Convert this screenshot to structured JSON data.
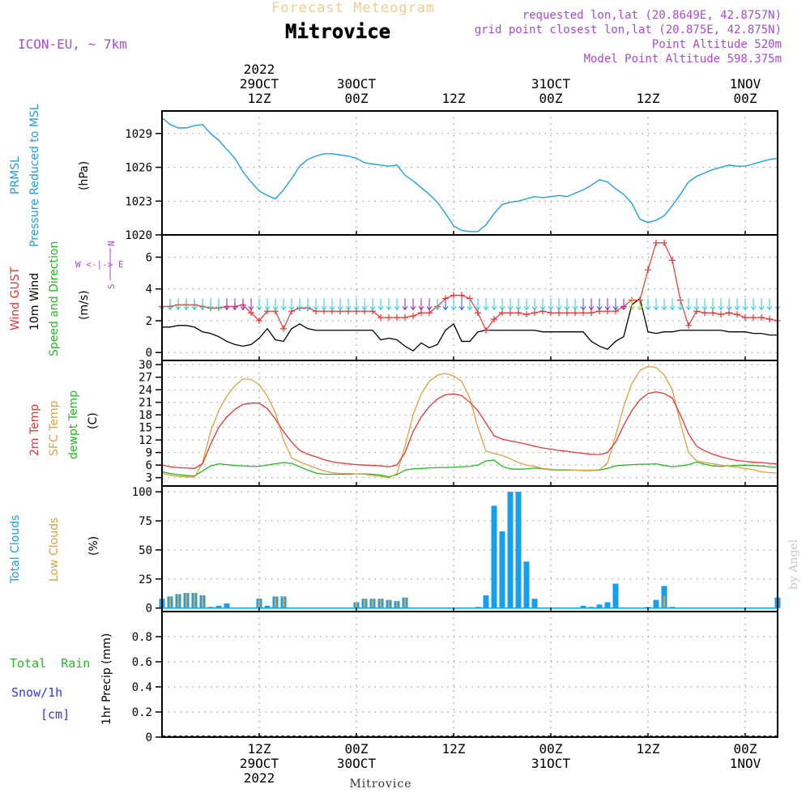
{
  "header": {
    "forecast_label": "Forecast Meteogram",
    "station": "Mitrovice",
    "model": "ICON-EU, ~ 7km",
    "requested": "requested lon,lat (20.8649E, 42.8757N)",
    "grid_point": "grid point closest lon,lat (20.875E, 42.875N)",
    "point_altitude": "Point Altitude 520m",
    "model_altitude": "Model Point Altitude 598.375m",
    "footer_station": "Mitrovice",
    "credit": "by Angel"
  },
  "colors": {
    "pressure": "#1ea0e6",
    "gust": "#ee3333",
    "wind10m": "#000000",
    "temp2m": "#ee3333",
    "sfc_temp": "#e0a040",
    "dewpt": "#22bb22",
    "total_clouds": "#14a0ee",
    "low_clouds": "#e0a040",
    "precip_label": "#22bb22",
    "snow_label": "#3333ee",
    "header_purple": "#a84ad8",
    "forecast_label": "#f0cc90"
  },
  "time_axis": {
    "top_labels": [
      {
        "t": 12,
        "lines": [
          "2022",
          "29OCT",
          "12Z"
        ]
      },
      {
        "t": 24,
        "lines": [
          "30OCT",
          "00Z"
        ]
      },
      {
        "t": 36,
        "lines": [
          "12Z"
        ]
      },
      {
        "t": 48,
        "lines": [
          "31OCT",
          "00Z"
        ]
      },
      {
        "t": 60,
        "lines": [
          "12Z"
        ]
      },
      {
        "t": 72,
        "lines": [
          "1NOV",
          "00Z"
        ]
      }
    ],
    "bottom_labels": [
      {
        "t": 12,
        "lines": [
          "12Z",
          "29OCT",
          "2022"
        ]
      },
      {
        "t": 24,
        "lines": [
          "00Z",
          "30OCT"
        ]
      },
      {
        "t": 36,
        "lines": [
          "12Z"
        ]
      },
      {
        "t": 48,
        "lines": [
          "00Z",
          "31OCT"
        ]
      },
      {
        "t": 60,
        "lines": [
          "12Z"
        ]
      },
      {
        "t": 72,
        "lines": [
          "00Z",
          "1NOV"
        ]
      }
    ]
  },
  "panels": {
    "pressure": {
      "labels": [
        "PRMSL",
        "Pressure Reduced to MSL"
      ],
      "unit": "(hPa)",
      "ticks": [
        "1020",
        "1023",
        "1026",
        "1029"
      ]
    },
    "wind": {
      "labels": [
        "Wind GUST",
        "10m Wind",
        "Speed and Direction"
      ],
      "unit": "(m/s)",
      "ticks": [
        "0",
        "2",
        "4",
        "6"
      ],
      "compass": [
        "N",
        "W <-|-> E",
        "S"
      ]
    },
    "temp": {
      "labels": [
        "2m Temp",
        "SFC Temp",
        "dewpt Temp"
      ],
      "unit": "(C)",
      "ticks": [
        "3",
        "6",
        "9",
        "12",
        "15",
        "18",
        "21",
        "24",
        "27",
        "30"
      ]
    },
    "clouds": {
      "labels": [
        "Total Clouds",
        "Low Clouds"
      ],
      "unit": "(%)",
      "ticks": [
        "0",
        "25",
        "50",
        "75",
        "100"
      ]
    },
    "precip": {
      "labels": [
        "Total  Rain",
        "Snow/1h",
        "[cm]"
      ],
      "axis_label": "1hr Precip (mm)",
      "ticks": [
        "0",
        "0.2",
        "0.4",
        "0.6",
        "0.8"
      ]
    }
  },
  "chart_data": [
    {
      "type": "line",
      "title": "PRMSL Pressure Reduced to MSL",
      "ylabel": "(hPa)",
      "ylim": [
        1020,
        1031
      ],
      "x": [
        0,
        1,
        2,
        3,
        4,
        5,
        6,
        7,
        8,
        9,
        10,
        11,
        12,
        13,
        14,
        15,
        16,
        17,
        18,
        19,
        20,
        21,
        22,
        23,
        24,
        25,
        26,
        27,
        28,
        29,
        30,
        31,
        32,
        33,
        34,
        35,
        36,
        37,
        38,
        39,
        40,
        41,
        42,
        43,
        44,
        45,
        46,
        47,
        48,
        49,
        50,
        51,
        52,
        53,
        54,
        55,
        56,
        57,
        58,
        59,
        60,
        61,
        62,
        63,
        64,
        65,
        66,
        67,
        68,
        69,
        70,
        71,
        72,
        73,
        74,
        75,
        76
      ],
      "series": [
        {
          "name": "PRMSL",
          "values": [
            1030.4,
            1029.8,
            1029.5,
            1029.5,
            1029.7,
            1029.8,
            1029.0,
            1028.4,
            1027.6,
            1026.8,
            1025.6,
            1024.7,
            1023.9,
            1023.5,
            1023.2,
            1024.0,
            1025.0,
            1026.1,
            1026.7,
            1027.0,
            1027.2,
            1027.2,
            1027.1,
            1027.0,
            1026.8,
            1026.4,
            1026.3,
            1026.2,
            1026.1,
            1026.2,
            1025.3,
            1024.8,
            1024.2,
            1023.6,
            1022.9,
            1021.9,
            1020.8,
            1020.4,
            1020.3,
            1020.3,
            1020.9,
            1021.9,
            1022.7,
            1022.9,
            1023.0,
            1023.2,
            1023.4,
            1023.3,
            1023.4,
            1023.5,
            1023.4,
            1023.7,
            1024.0,
            1024.4,
            1024.9,
            1024.7,
            1024.1,
            1023.6,
            1022.8,
            1021.4,
            1021.1,
            1021.3,
            1021.7,
            1022.6,
            1023.6,
            1024.7,
            1025.2,
            1025.5,
            1025.8,
            1026.0,
            1026.2,
            1026.1,
            1026.1,
            1026.3,
            1026.5,
            1026.7,
            1026.8
          ]
        }
      ]
    },
    {
      "type": "line",
      "title": "Wind GUST / 10m Wind Speed and Direction",
      "ylabel": "(m/s)",
      "ylim": [
        -0.5,
        7.4
      ],
      "x": [
        0,
        1,
        2,
        3,
        4,
        5,
        6,
        7,
        8,
        9,
        10,
        11,
        12,
        13,
        14,
        15,
        16,
        17,
        18,
        19,
        20,
        21,
        22,
        23,
        24,
        25,
        26,
        27,
        28,
        29,
        30,
        31,
        32,
        33,
        34,
        35,
        36,
        37,
        38,
        39,
        40,
        41,
        42,
        43,
        44,
        45,
        46,
        47,
        48,
        49,
        50,
        51,
        52,
        53,
        54,
        55,
        56,
        57,
        58,
        59,
        60,
        61,
        62,
        63,
        64,
        65,
        66,
        67,
        68,
        69,
        70,
        71,
        72,
        73,
        74,
        75,
        76
      ],
      "series": [
        {
          "name": "Wind GUST",
          "values": [
            2.9,
            2.9,
            3.0,
            3.0,
            3.0,
            2.9,
            2.8,
            2.8,
            2.9,
            2.9,
            3.0,
            2.5,
            2.0,
            2.6,
            2.6,
            1.5,
            2.6,
            2.8,
            2.8,
            2.6,
            2.6,
            2.6,
            2.6,
            2.6,
            2.6,
            2.6,
            2.6,
            2.2,
            2.2,
            2.2,
            2.2,
            2.3,
            2.5,
            2.5,
            2.9,
            3.4,
            3.6,
            3.6,
            3.4,
            2.5,
            1.4,
            2.1,
            2.5,
            2.5,
            2.5,
            2.4,
            2.5,
            2.6,
            2.5,
            2.5,
            2.5,
            2.5,
            2.5,
            2.5,
            2.6,
            2.6,
            2.6,
            2.9,
            3.3,
            3.3,
            5.2,
            6.9,
            6.9,
            5.8,
            3.3,
            1.7,
            2.6,
            2.5,
            2.5,
            2.4,
            2.5,
            2.4,
            2.2,
            2.2,
            2.2,
            2.1,
            2.0
          ]
        },
        {
          "name": "10m Wind",
          "values": [
            1.6,
            1.6,
            1.7,
            1.7,
            1.6,
            1.3,
            1.2,
            1.0,
            0.7,
            0.5,
            0.4,
            0.5,
            0.9,
            1.5,
            0.8,
            0.7,
            1.5,
            1.8,
            1.5,
            1.4,
            1.4,
            1.4,
            1.4,
            1.4,
            1.4,
            1.4,
            1.4,
            0.8,
            0.9,
            0.8,
            0.4,
            0.1,
            0.6,
            0.3,
            0.5,
            1.4,
            1.8,
            0.7,
            0.7,
            1.3,
            1.4,
            1.4,
            1.4,
            1.4,
            1.4,
            1.4,
            1.4,
            1.3,
            1.3,
            1.3,
            1.3,
            1.3,
            1.3,
            0.7,
            0.4,
            0.2,
            0.7,
            1.0,
            3.0,
            3.4,
            1.3,
            1.2,
            1.3,
            1.3,
            1.4,
            1.4,
            1.4,
            1.4,
            1.4,
            1.4,
            1.3,
            1.3,
            1.3,
            1.2,
            1.2,
            1.1,
            1.1
          ]
        }
      ]
    },
    {
      "type": "line",
      "title": "2m Temp / SFC Temp / dewpt Temp",
      "ylabel": "(C)",
      "ylim": [
        1,
        31
      ],
      "x": [
        0,
        1,
        2,
        3,
        4,
        5,
        6,
        7,
        8,
        9,
        10,
        11,
        12,
        13,
        14,
        15,
        16,
        17,
        18,
        19,
        20,
        21,
        22,
        23,
        24,
        25,
        26,
        27,
        28,
        29,
        30,
        31,
        32,
        33,
        34,
        35,
        36,
        37,
        38,
        39,
        40,
        41,
        42,
        43,
        44,
        45,
        46,
        47,
        48,
        49,
        50,
        51,
        52,
        53,
        54,
        55,
        56,
        57,
        58,
        59,
        60,
        61,
        62,
        63,
        64,
        65,
        66,
        67,
        68,
        69,
        70,
        71,
        72,
        73,
        74,
        75,
        76
      ],
      "series": [
        {
          "name": "2m Temp",
          "values": [
            6.0,
            5.6,
            5.4,
            5.3,
            5.2,
            6.3,
            11.0,
            15.0,
            17.5,
            19.3,
            20.5,
            20.8,
            20.8,
            19.5,
            17.0,
            14.0,
            11.5,
            9.5,
            8.6,
            8.0,
            7.3,
            6.8,
            6.5,
            6.3,
            6.1,
            6.0,
            5.9,
            5.8,
            5.6,
            6.0,
            9.0,
            14.0,
            17.5,
            20.0,
            21.8,
            22.8,
            23.0,
            22.6,
            21.0,
            19.0,
            16.0,
            13.0,
            12.2,
            11.8,
            11.4,
            11.0,
            10.5,
            10.1,
            9.8,
            9.5,
            9.3,
            9.0,
            8.8,
            8.6,
            8.5,
            9.0,
            11.5,
            15.5,
            19.0,
            21.6,
            23.1,
            23.5,
            23.1,
            22.0,
            18.0,
            13.5,
            10.5,
            9.4,
            8.6,
            8.0,
            7.5,
            7.1,
            6.9,
            6.7,
            6.6,
            6.4,
            6.3
          ]
        },
        {
          "name": "SFC Temp",
          "values": [
            4.0,
            3.6,
            3.3,
            3.2,
            3.1,
            6.5,
            14.0,
            19.0,
            22.5,
            25.0,
            26.6,
            26.5,
            25.2,
            22.5,
            18.5,
            12.0,
            7.7,
            6.8,
            6.0,
            5.3,
            4.6,
            4.2,
            4.0,
            4.0,
            3.9,
            3.8,
            3.5,
            3.3,
            2.9,
            4.0,
            10.5,
            18.0,
            23.0,
            26.0,
            27.5,
            27.9,
            27.3,
            26.0,
            22.0,
            15.0,
            9.3,
            8.8,
            8.3,
            7.5,
            6.6,
            6.0,
            5.7,
            5.2,
            5.0,
            4.9,
            4.9,
            4.8,
            4.8,
            4.8,
            4.9,
            6.5,
            13.0,
            20.0,
            25.5,
            28.6,
            29.6,
            29.3,
            27.5,
            24.0,
            16.0,
            9.0,
            7.0,
            6.6,
            6.3,
            6.0,
            5.7,
            5.5,
            5.2,
            4.9,
            4.4,
            4.2,
            4.1
          ]
        },
        {
          "name": "dewpt Temp",
          "values": [
            4.4,
            4.0,
            3.7,
            3.5,
            3.4,
            4.6,
            5.8,
            6.3,
            6.1,
            5.9,
            5.8,
            5.7,
            5.7,
            6.0,
            6.3,
            6.6,
            6.4,
            5.6,
            4.8,
            4.1,
            3.8,
            3.8,
            3.8,
            3.8,
            3.9,
            3.9,
            3.8,
            3.6,
            3.2,
            3.7,
            4.8,
            5.1,
            5.2,
            5.3,
            5.4,
            5.4,
            5.5,
            5.6,
            5.7,
            6.0,
            7.0,
            7.2,
            5.7,
            5.1,
            5.0,
            5.1,
            5.3,
            5.1,
            4.9,
            4.8,
            4.8,
            4.8,
            4.7,
            4.7,
            4.8,
            5.2,
            5.8,
            6.0,
            6.1,
            6.2,
            6.2,
            6.3,
            5.9,
            5.6,
            5.8,
            6.1,
            6.7,
            6.2,
            5.8,
            5.7,
            5.8,
            5.9,
            6.0,
            5.9,
            5.8,
            5.6,
            5.4
          ]
        }
      ]
    },
    {
      "type": "bar",
      "title": "Total Clouds / Low Clouds",
      "ylabel": "(%)",
      "ylim": [
        -3,
        105
      ],
      "x": [
        0,
        1,
        2,
        3,
        4,
        5,
        6,
        7,
        8,
        9,
        10,
        11,
        12,
        13,
        14,
        15,
        16,
        17,
        18,
        19,
        20,
        21,
        22,
        23,
        24,
        25,
        26,
        27,
        28,
        29,
        30,
        31,
        32,
        33,
        34,
        35,
        36,
        37,
        38,
        39,
        40,
        41,
        42,
        43,
        44,
        45,
        46,
        47,
        48,
        49,
        50,
        51,
        52,
        53,
        54,
        55,
        56,
        57,
        58,
        59,
        60,
        61,
        62,
        63,
        64,
        65,
        66,
        67,
        68,
        69,
        70,
        71,
        72,
        73,
        74,
        75,
        76
      ],
      "series": [
        {
          "name": "Total Clouds",
          "values": [
            8,
            10,
            12,
            13,
            13,
            11,
            1,
            2,
            4,
            0,
            0,
            0,
            8,
            2,
            10,
            10,
            0,
            0,
            0,
            0,
            0,
            0,
            0,
            0,
            5,
            8,
            8,
            8,
            7,
            6,
            9,
            0,
            0,
            0,
            0,
            0,
            0,
            0,
            0,
            1,
            11,
            88,
            66,
            100,
            100,
            40,
            8,
            0,
            0,
            0,
            0,
            0,
            2,
            1,
            3,
            5,
            21,
            0,
            0,
            0,
            1,
            7,
            19,
            1,
            0,
            0,
            0,
            0,
            0,
            0,
            0,
            0,
            0,
            0,
            0,
            0,
            9
          ]
        },
        {
          "name": "Low Clouds",
          "values": [
            8,
            10,
            12,
            13,
            13,
            11,
            0,
            0,
            0,
            0,
            0,
            0,
            7,
            0,
            10,
            10,
            0,
            0,
            0,
            0,
            0,
            0,
            0,
            0,
            5,
            8,
            8,
            8,
            7,
            6,
            9,
            0,
            0,
            0,
            0,
            0,
            0,
            0,
            0,
            0,
            0,
            0,
            0,
            0,
            0,
            0,
            0,
            0,
            0,
            0,
            0,
            0,
            0,
            0,
            0,
            0,
            0,
            0,
            0,
            0,
            0,
            0,
            10,
            0,
            0,
            0,
            0,
            0,
            0,
            0,
            0,
            0,
            0,
            0,
            0,
            0,
            9
          ]
        }
      ]
    },
    {
      "type": "bar",
      "title": "1hr Precip (mm)",
      "ylabel": "1hr Precip (mm)",
      "ylim": [
        0,
        1.0
      ],
      "x": [
        0,
        12,
        24,
        36,
        48,
        60,
        72,
        76
      ],
      "series": [
        {
          "name": "Total  Rain",
          "values": [
            0,
            0,
            0,
            0,
            0,
            0,
            0,
            0
          ]
        },
        {
          "name": "Snow/1h",
          "values": [
            0,
            0,
            0,
            0,
            0,
            0,
            0,
            0
          ]
        }
      ]
    }
  ]
}
